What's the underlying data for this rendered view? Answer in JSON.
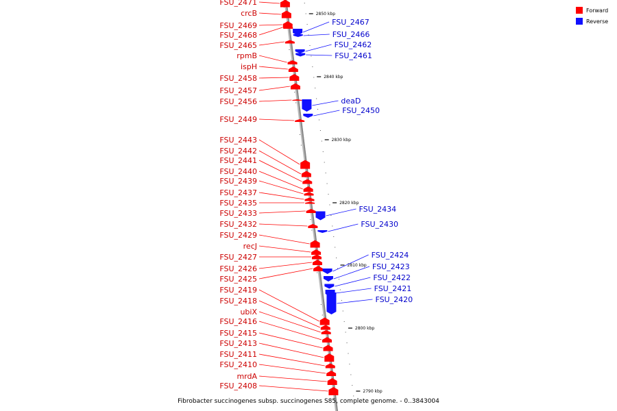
{
  "colors": {
    "forward": "#ff0000",
    "reverse": "#1010ff",
    "backbone": "#888888",
    "forward_label": "#cc0000",
    "reverse_label": "#0000cc"
  },
  "legend": [
    {
      "key": "forward",
      "label": "Forward"
    },
    {
      "key": "reverse",
      "label": "Reverse"
    }
  ],
  "caption": "Fibrobacter succinogenes subsp. succinogenes S85, complete genome. - 0..3843004",
  "ticks": [
    "2850 kbp",
    "2840 kbp",
    "2830 kbp",
    "2820 kbp",
    "2810 kbp",
    "2800 kbp",
    "2790 kbp"
  ],
  "genes": {
    "forward": [
      "FSU_2471",
      "crcB",
      "FSU_2469",
      "FSU_2468",
      "FSU_2465",
      "rpmB",
      "ispH",
      "FSU_2458",
      "FSU_2457",
      "FSU_2456",
      "FSU_2449",
      "FSU_2443",
      "FSU_2442",
      "FSU_2441",
      "FSU_2440",
      "FSU_2439",
      "FSU_2437",
      "FSU_2435",
      "FSU_2433",
      "FSU_2432",
      "FSU_2429",
      "recJ",
      "FSU_2427",
      "FSU_2426",
      "FSU_2425",
      "FSU_2419",
      "FSU_2418",
      "ubiX",
      "FSU_2416",
      "FSU_2415",
      "FSU_2413",
      "FSU_2411",
      "FSU_2410",
      "mrdA",
      "FSU_2408"
    ],
    "reverse": [
      "FSU_2467",
      "FSU_2466",
      "FSU_2462",
      "FSU_2461",
      "deaD",
      "FSU_2450",
      "FSU_2434",
      "FSU_2430",
      "FSU_2424",
      "FSU_2423",
      "FSU_2422",
      "FSU_2421",
      "FSU_2420"
    ]
  }
}
